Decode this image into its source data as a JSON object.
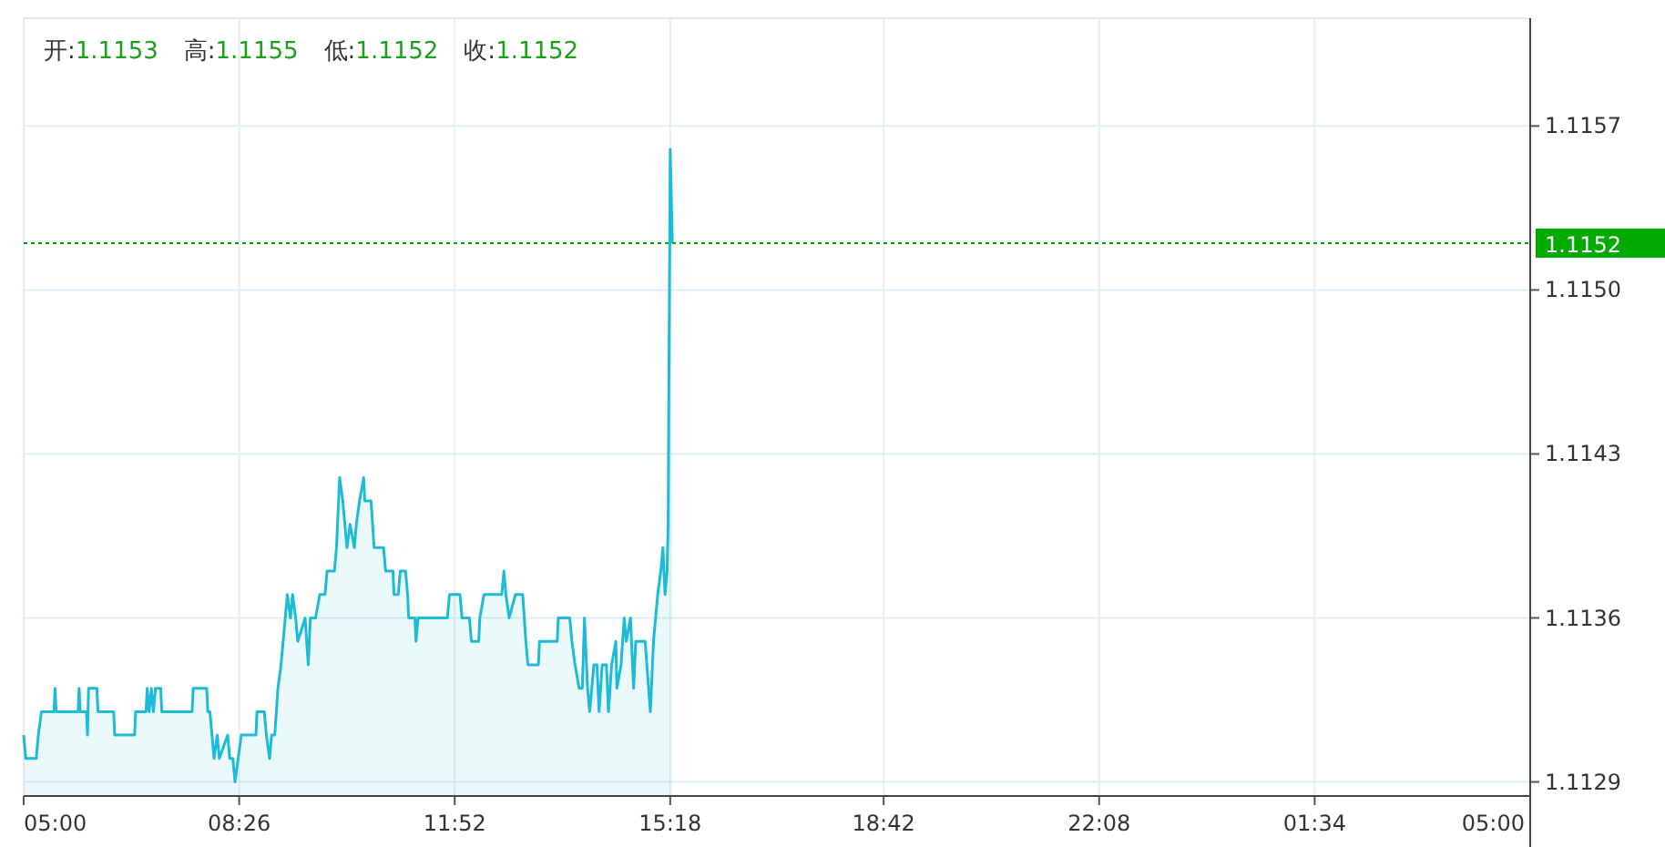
{
  "chart_data": {
    "type": "area",
    "annotations": [
      "开:1.1153",
      "高:1.1155",
      "低:1.1152",
      "收:1.1152"
    ],
    "x": [
      "2000-01-01T05:00",
      "2000-01-01T05:02",
      "2000-01-01T05:12",
      "2000-01-01T05:14",
      "2000-01-01T05:17",
      "2000-01-01T05:29",
      "2000-01-01T05:30",
      "2000-01-01T05:31",
      "2000-01-01T05:52",
      "2000-01-01T05:53",
      "2000-01-01T05:54",
      "2000-01-01T06:00",
      "2000-01-01T06:01",
      "2000-01-01T06:02",
      "2000-01-01T06:10",
      "2000-01-01T06:11",
      "2000-01-01T06:26",
      "2000-01-01T06:27",
      "2000-01-01T06:46",
      "2000-01-01T06:47",
      "2000-01-01T06:57",
      "2000-01-01T06:58",
      "2000-01-01T07:00",
      "2000-01-01T07:02",
      "2000-01-01T07:04",
      "2000-01-01T07:06",
      "2000-01-01T07:11",
      "2000-01-01T07:12",
      "2000-01-01T07:41",
      "2000-01-01T07:42",
      "2000-01-01T07:55",
      "2000-01-01T07:56",
      "2000-01-01T07:58",
      "2000-01-01T08:00",
      "2000-01-01T08:02",
      "2000-01-01T08:05",
      "2000-01-01T08:07",
      "2000-01-01T08:15",
      "2000-01-01T08:17",
      "2000-01-01T08:20",
      "2000-01-01T08:22",
      "2000-01-01T08:25",
      "2000-01-01T08:28",
      "2000-01-01T08:42",
      "2000-01-01T08:43",
      "2000-01-01T08:50",
      "2000-01-01T08:52",
      "2000-01-01T08:55",
      "2000-01-01T08:57",
      "2000-01-01T09:00",
      "2000-01-01T09:03",
      "2000-01-01T09:06",
      "2000-01-01T09:10",
      "2000-01-01T09:12",
      "2000-01-01T09:15",
      "2000-01-01T09:17",
      "2000-01-01T09:20",
      "2000-01-01T09:22",
      "2000-01-01T09:29",
      "2000-01-01T09:32",
      "2000-01-01T09:34",
      "2000-01-01T09:39",
      "2000-01-01T09:43",
      "2000-01-01T09:48",
      "2000-01-01T09:50",
      "2000-01-01T09:57",
      "2000-01-01T09:59",
      "2000-01-01T10:02",
      "2000-01-01T10:05",
      "2000-01-01T10:07",
      "2000-01-01T10:09",
      "2000-01-01T10:12",
      "2000-01-01T10:16",
      "2000-01-01T10:18",
      "2000-01-01T10:21",
      "2000-01-01T10:25",
      "2000-01-01T10:26",
      "2000-01-01T10:32",
      "2000-01-01T10:35",
      "2000-01-01T10:44",
      "2000-01-01T10:46",
      "2000-01-01T10:53",
      "2000-01-01T10:54",
      "2000-01-01T10:58",
      "2000-01-01T11:00",
      "2000-01-01T11:05",
      "2000-01-01T11:07",
      "2000-01-01T11:08",
      "2000-01-01T11:14",
      "2000-01-01T11:15",
      "2000-01-01T11:17",
      "2000-01-01T11:45",
      "2000-01-01T11:47",
      "2000-01-01T11:57",
      "2000-01-01T11:59",
      "2000-01-01T12:06",
      "2000-01-01T12:08",
      "2000-01-01T12:15",
      "2000-01-01T12:16",
      "2000-01-01T12:20",
      "2000-01-01T12:37",
      "2000-01-01T12:39",
      "2000-01-01T12:41",
      "2000-01-01T12:44",
      "2000-01-01T12:50",
      "2000-01-01T12:57",
      "2000-01-01T13:00",
      "2000-01-01T13:02",
      "2000-01-01T13:12",
      "2000-01-01T13:13",
      "2000-01-01T13:30",
      "2000-01-01T13:31",
      "2000-01-01T13:42",
      "2000-01-01T13:44",
      "2000-01-01T13:47",
      "2000-01-01T13:51",
      "2000-01-01T13:54",
      "2000-01-01T13:56",
      "2000-01-01T13:59",
      "2000-01-01T14:01",
      "2000-01-01T14:05",
      "2000-01-01T14:08",
      "2000-01-01T14:10",
      "2000-01-01T14:13",
      "2000-01-01T14:17",
      "2000-01-01T14:19",
      "2000-01-01T14:22",
      "2000-01-01T14:26",
      "2000-01-01T14:27",
      "2000-01-01T14:31",
      "2000-01-01T14:34",
      "2000-01-01T14:36",
      "2000-01-01T14:40",
      "2000-01-01T14:43",
      "2000-01-01T14:45",
      "2000-01-01T14:54",
      "2000-01-01T14:59",
      "2000-01-01T15:02",
      "2000-01-01T15:06",
      "2000-01-01T15:09",
      "2000-01-01T15:11",
      "2000-01-01T15:13",
      "2000-01-01T15:15",
      "2000-01-01T15:16",
      "2000-01-01T15:18",
      "2000-01-01T15:19",
      "2000-01-01T15:20"
    ],
    "series": [
      {
        "color": "#1cbcd8",
        "values": [
          1.1131,
          1.113,
          1.113,
          1.1131,
          1.1132,
          1.1132,
          1.1133,
          1.1132,
          1.1132,
          1.1133,
          1.1132,
          1.1132,
          1.1131,
          1.1133,
          1.1133,
          1.1132,
          1.1132,
          1.1131,
          1.1131,
          1.1132,
          1.1132,
          1.1133,
          1.1132,
          1.1133,
          1.1132,
          1.1133,
          1.1133,
          1.1132,
          1.1132,
          1.1133,
          1.1133,
          1.1132,
          1.1132,
          1.1131,
          1.113,
          1.1131,
          1.113,
          1.1131,
          1.113,
          1.113,
          1.1129,
          1.113,
          1.1131,
          1.1131,
          1.1132,
          1.1132,
          1.1131,
          1.113,
          1.1131,
          1.1131,
          1.1133,
          1.1134,
          1.1136,
          1.1137,
          1.1136,
          1.1137,
          1.1136,
          1.1135,
          1.1136,
          1.1134,
          1.1136,
          1.1136,
          1.1137,
          1.1137,
          1.1138,
          1.1138,
          1.1139,
          1.1142,
          1.1141,
          1.114,
          1.1139,
          1.114,
          1.1139,
          1.114,
          1.1141,
          1.1142,
          1.1141,
          1.1141,
          1.1139,
          1.1139,
          1.1138,
          1.1138,
          1.1137,
          1.1137,
          1.1138,
          1.1138,
          1.1137,
          1.1136,
          1.1136,
          1.1135,
          1.1136,
          1.1136,
          1.1137,
          1.1137,
          1.1136,
          1.1136,
          1.1135,
          1.1135,
          1.1136,
          1.1137,
          1.1137,
          1.1138,
          1.1137,
          1.1136,
          1.1137,
          1.1137,
          1.1135,
          1.1134,
          1.1134,
          1.1135,
          1.1135,
          1.1136,
          1.1136,
          1.1135,
          1.1134,
          1.1133,
          1.1133,
          1.1136,
          1.1133,
          1.1132,
          1.1134,
          1.1134,
          1.1132,
          1.1134,
          1.1134,
          1.1132,
          1.1134,
          1.1135,
          1.1133,
          1.1134,
          1.1136,
          1.1135,
          1.1136,
          1.1133,
          1.1135,
          1.1135,
          1.1132,
          1.1135,
          1.1137,
          1.1138,
          1.1139,
          1.1137,
          1.1138,
          1.114,
          1.1156,
          1.1154,
          1.1152
        ]
      }
    ],
    "xlim": [
      "2000-01-01T05:00",
      "2000-01-02T05:00"
    ],
    "xticks": [
      {
        "value": "2000-01-01T05:00",
        "label": "05:00"
      },
      {
        "value": "2000-01-01T08:26",
        "label": "08:26"
      },
      {
        "value": "2000-01-01T11:52",
        "label": "11:52"
      },
      {
        "value": "2000-01-01T15:18",
        "label": "15:18"
      },
      {
        "value": "2000-01-01T18:42",
        "label": "18:42"
      },
      {
        "value": "2000-01-01T22:08",
        "label": "22:08"
      },
      {
        "value": "2000-01-02T01:34",
        "label": "01:34"
      },
      {
        "value": "2000-01-02T05:00",
        "label": "05:00"
      }
    ],
    "ylim": [
      1.11284,
      1.11616
    ],
    "yticks": [
      {
        "value": 1.1129,
        "label": "1.1129"
      },
      {
        "value": 1.1136,
        "label": "1.1136"
      },
      {
        "value": 1.1143,
        "label": "1.1143"
      },
      {
        "value": 1.115,
        "label": "1.1150"
      },
      {
        "value": 1.1157,
        "label": "1.1157"
      }
    ],
    "ref_lines": [
      {
        "axis": "y",
        "value": 1.1152,
        "label": "1.1152",
        "color": "#00aa00",
        "line_style": "dotted"
      }
    ],
    "grid": true,
    "marker": "none",
    "line_style": "solid"
  }
}
